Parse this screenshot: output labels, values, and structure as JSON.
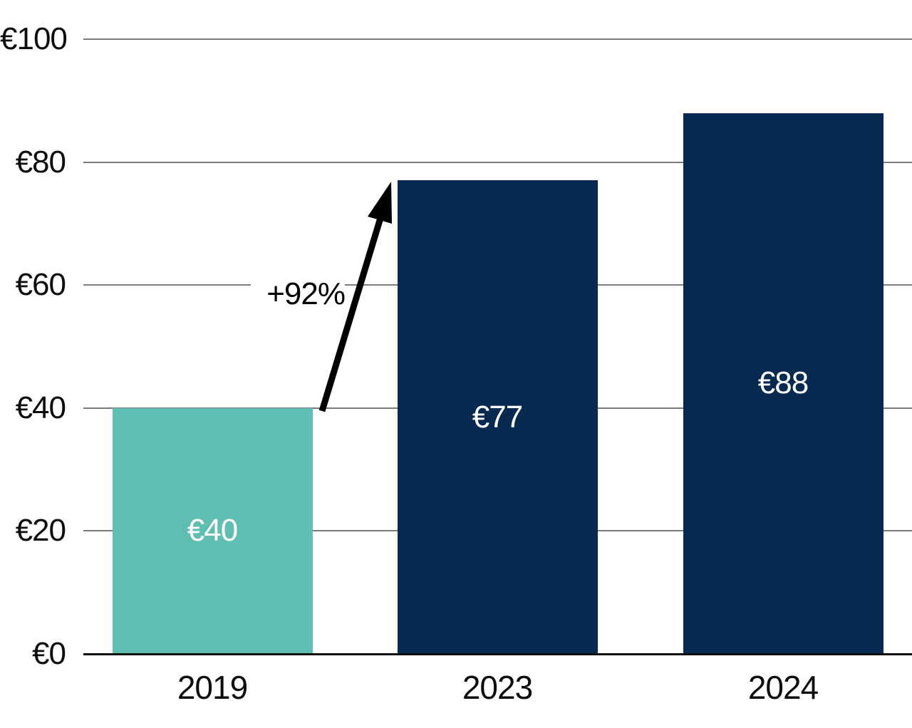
{
  "chart_data": {
    "type": "bar",
    "title": "",
    "xlabel": "",
    "ylabel": "",
    "categories": [
      "2019",
      "2023",
      "2024"
    ],
    "values": [
      40,
      77,
      88
    ],
    "bar_labels": [
      "€40",
      "€77",
      "€88"
    ],
    "bar_colors": [
      "#5FBDB2",
      "#092A50",
      "#092A50"
    ],
    "ylim": [
      0,
      100
    ],
    "yticks": [
      0,
      20,
      40,
      60,
      80,
      100
    ],
    "ytick_labels": [
      "€0",
      "€20",
      "€40",
      "€60",
      "€80",
      "€100"
    ],
    "grid": true,
    "legend": "none",
    "gridline_color": "#7a7a7a",
    "axis_color": "#0d0d0d",
    "value_label_color": "#ffffff",
    "annotation": {
      "label": "+92%",
      "from_category": "2019",
      "from_value": 40,
      "to_category": "2023",
      "to_value": 77,
      "arrow_color": "#000000"
    }
  }
}
